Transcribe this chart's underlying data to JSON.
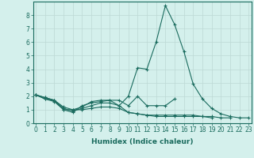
{
  "xlabel": "Humidex (Indice chaleur)",
  "x": [
    0,
    1,
    2,
    3,
    4,
    5,
    6,
    7,
    8,
    9,
    10,
    11,
    12,
    13,
    14,
    15,
    16,
    17,
    18,
    19,
    20,
    21,
    22,
    23
  ],
  "series": [
    [
      2.1,
      1.8,
      1.7,
      1.0,
      0.8,
      1.3,
      1.5,
      1.6,
      1.7,
      1.3,
      2.0,
      4.1,
      4.0,
      6.0,
      8.7,
      7.3,
      5.3,
      2.9,
      1.8,
      1.1,
      0.7,
      0.5,
      0.4,
      0.4
    ],
    [
      2.1,
      1.8,
      1.6,
      1.0,
      1.0,
      1.2,
      1.6,
      1.7,
      1.7,
      1.7,
      1.3,
      2.0,
      1.3,
      1.3,
      1.3,
      1.8,
      null,
      null,
      null,
      null,
      null,
      null,
      null,
      null
    ],
    [
      2.1,
      1.9,
      1.7,
      1.1,
      0.9,
      1.1,
      1.3,
      1.5,
      1.5,
      1.3,
      0.8,
      0.7,
      0.6,
      0.6,
      0.6,
      0.6,
      0.6,
      0.6,
      0.5,
      0.5,
      0.4,
      0.4,
      null,
      null
    ],
    [
      2.1,
      1.9,
      1.7,
      1.2,
      1.0,
      1.0,
      1.1,
      1.2,
      1.2,
      1.1,
      0.8,
      0.7,
      0.6,
      0.5,
      0.5,
      0.5,
      0.5,
      0.5,
      0.5,
      0.4,
      null,
      null,
      null,
      null
    ]
  ],
  "line_color": "#1a6b5e",
  "bg_color": "#d4f0ec",
  "grid_color": "#bdd8d4",
  "ylim": [
    0,
    9
  ],
  "yticks": [
    0,
    1,
    2,
    3,
    4,
    5,
    6,
    7,
    8
  ],
  "xlim": [
    -0.3,
    23.3
  ]
}
